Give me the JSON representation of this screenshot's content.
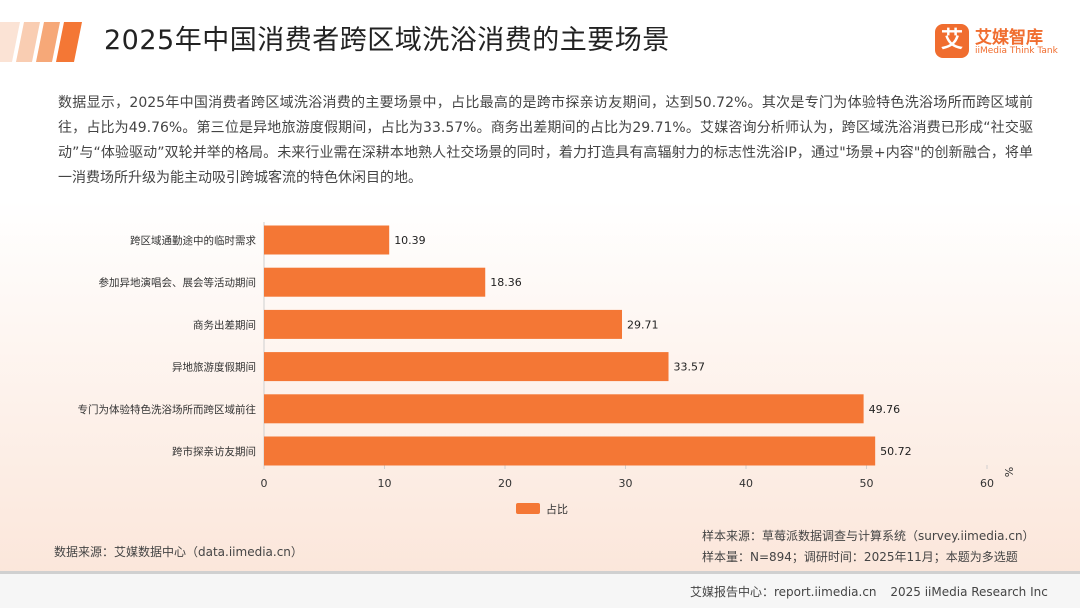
{
  "header": {
    "title": "2025年中国消费者跨区域洗浴消费的主要场景",
    "logo_mark": "艾",
    "logo_name": "艾媒智库",
    "logo_sub": "iiMedia Think Tank"
  },
  "description": "数据显示，2025年中国消费者跨区域洗浴消费的主要场景中，占比最高的是跨市探亲访友期间，达到50.72%。其次是专门为体验特色洗浴场所而跨区域前往，占比为49.76%。第三位是异地旅游度假期间，占比为33.57%。商务出差期间的占比为29.71%。艾媒咨询分析师认为，跨区域洗浴消费已形成“社交驱动”与“体验驱动”双轮并举的格局。未来行业需在深耕本地熟人社交场景的同时，着力打造具有高辐射力的标志性洗浴IP，通过\"场景+内容\"的创新融合，将单一消费场所升级为能主动吸引跨城客流的特色休闲目的地。",
  "chart_data": {
    "type": "bar",
    "orientation": "horizontal",
    "categories": [
      "跨区域通勤途中的临时需求",
      "参加异地演唱会、展会等活动期间",
      "商务出差期间",
      "异地旅游度假期间",
      "专门为体验特色洗浴场所而跨区域前往",
      "跨市探亲访友期间"
    ],
    "series": [
      {
        "name": "占比",
        "values": [
          10.39,
          18.36,
          29.71,
          33.57,
          49.76,
          50.72
        ]
      }
    ],
    "value_labels": [
      "10.39",
      "18.36",
      "29.71",
      "33.57",
      "49.76",
      "50.72"
    ],
    "xlim": [
      0,
      60
    ],
    "xticks": [
      0,
      10,
      20,
      30,
      40,
      50,
      60
    ],
    "xtick_labels": [
      "0",
      "10",
      "20",
      "30",
      "40",
      "50",
      "60"
    ],
    "xlabel": "%",
    "bar_color": "#f47735",
    "legend": "bottom-center"
  },
  "legend": {
    "label": "占比"
  },
  "footnotes": {
    "data_source": "数据来源：艾媒数据中心（data.iimedia.cn）",
    "sample_source": "样本来源：草莓派数据调查与计算系统（survey.iimedia.cn）",
    "sample_size": "样本量：N=894；调研时间：2025年11月；本题为多选题"
  },
  "footer": {
    "report_center": "艾媒报告中心：report.iimedia.cn",
    "copyright": "2025 iiMedia Research Inc"
  }
}
